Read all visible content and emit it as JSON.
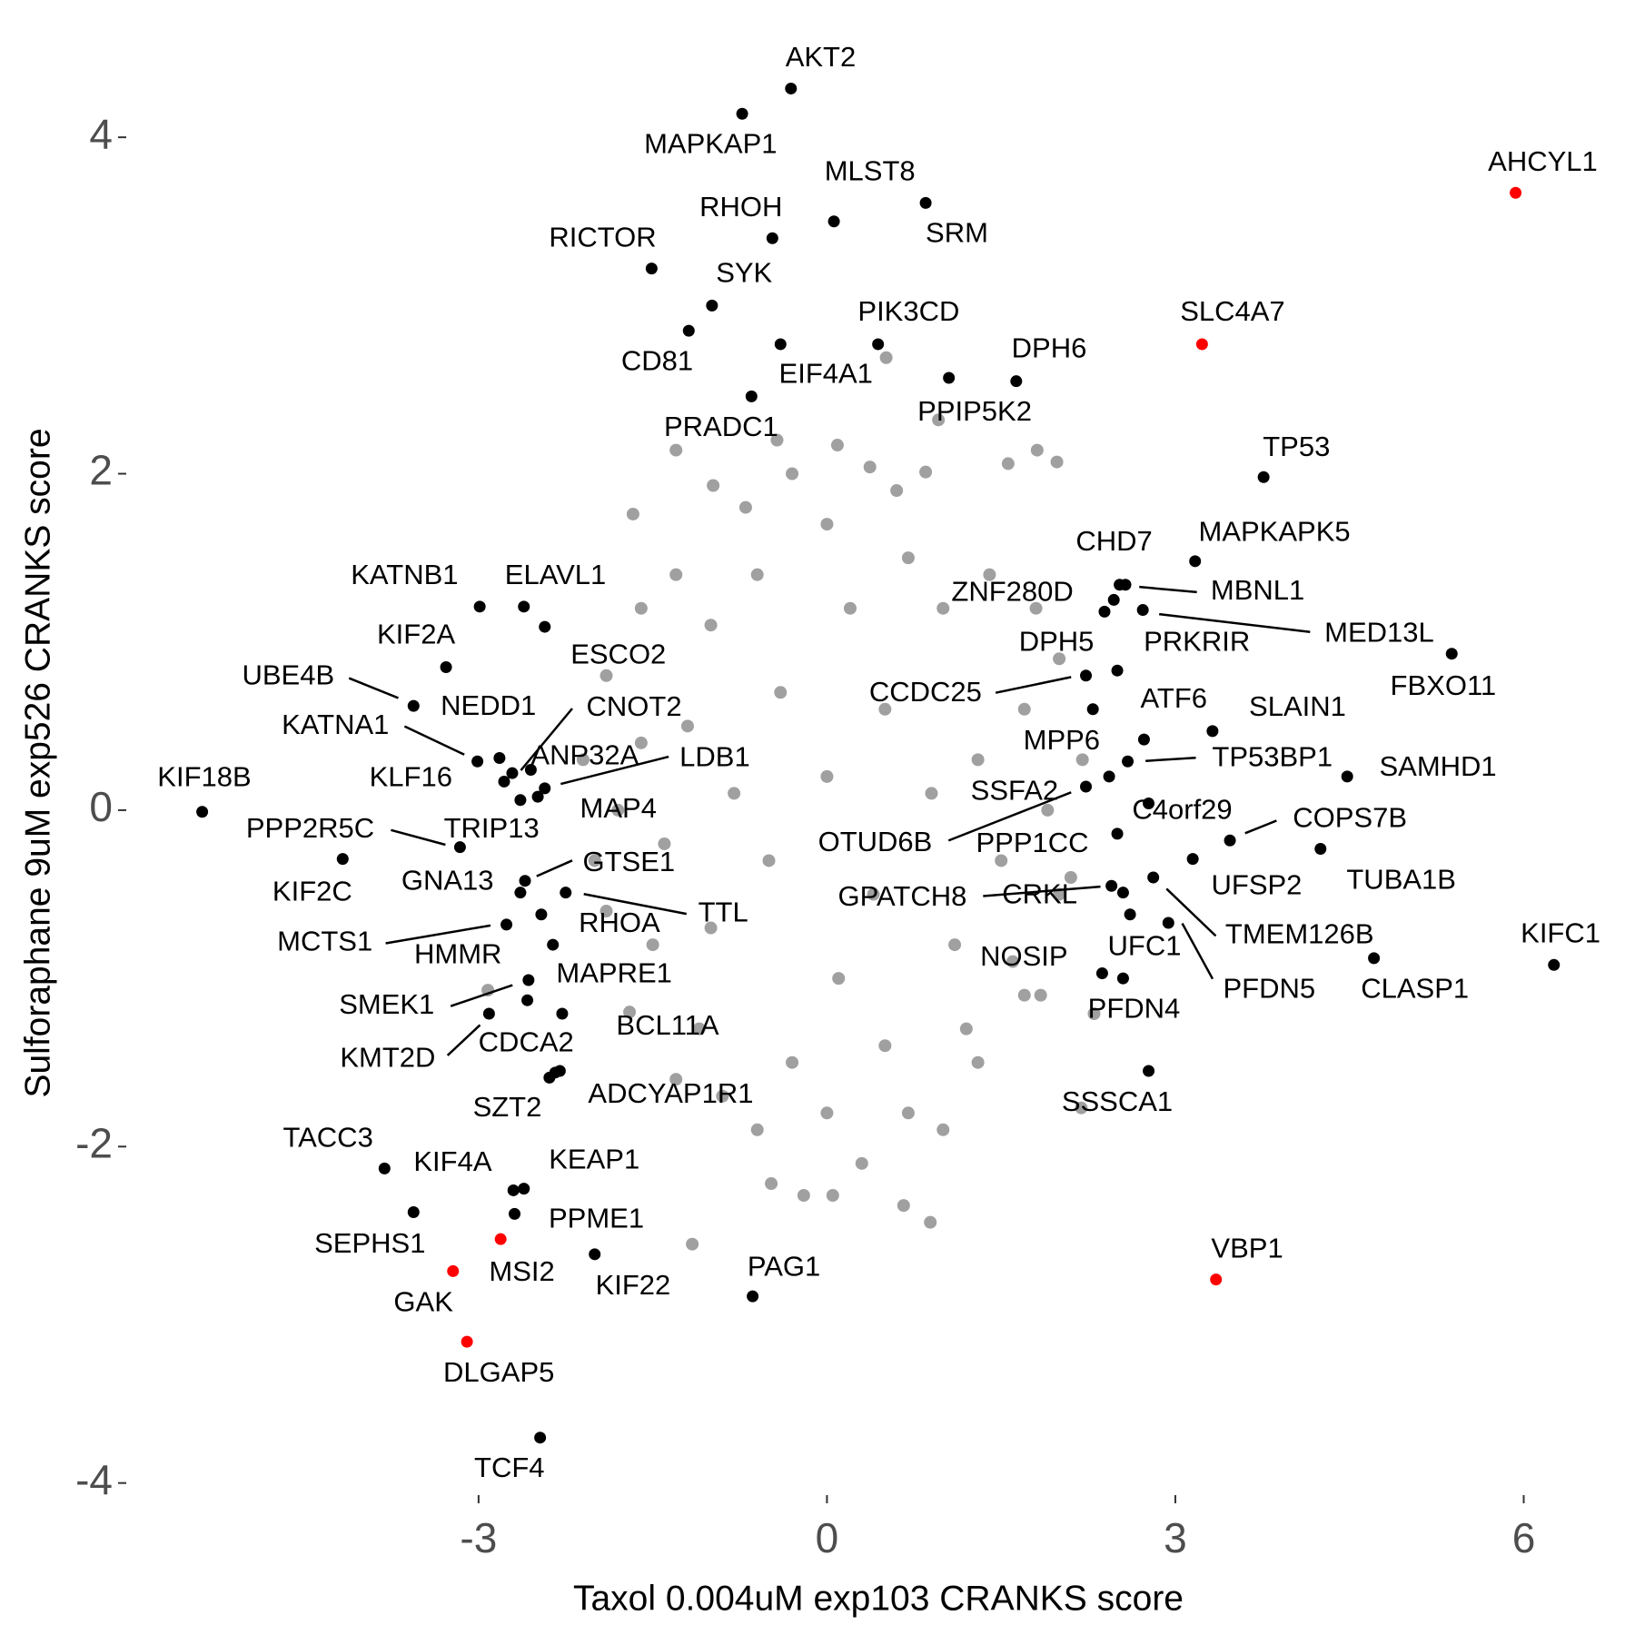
{
  "chart_data": {
    "type": "scatter",
    "x_label": "Taxol 0.004uM exp103 CRANKS score",
    "y_label": "Sulforaphane 9uM exp526 CRANKS score",
    "xlim": [
      -5.9,
      6.7
    ],
    "ylim": [
      -4.2,
      4.6
    ],
    "xticks": [
      -3,
      0,
      3,
      6
    ],
    "yticks": [
      -4,
      -2,
      0,
      2,
      4
    ],
    "grid": false,
    "series": [
      {
        "color": "#a0a0a0",
        "x": [
          0,
          0.5,
          -0.5,
          0.4,
          -0.4,
          0.1,
          0.2,
          -0.8,
          0.9,
          -1.2,
          1.3,
          -1.0,
          1.1,
          -0.6,
          0.7,
          -0.3,
          0.5,
          -1.4,
          1.5,
          0,
          0,
          -1.0,
          1.0,
          -1.1,
          1.2,
          -1.6,
          1.7,
          -1.5,
          1.6,
          -0.7,
          0.6,
          -0.6,
          0.7,
          -1.8,
          1.9,
          -1.3,
          1.4,
          -1.3,
          1.3,
          -0.3,
          0.3,
          -1.9,
          2.0,
          -1.9,
          2.0,
          -1.6,
          1.8,
          -1.7,
          1.7,
          -0.9,
          1.0,
          -2.1,
          2.2,
          -2.0,
          2.1,
          -1.67,
          -1.3,
          -0.98,
          -0.43,
          0.09,
          0.37,
          0.85,
          1.56,
          1.81,
          1.98,
          0.96,
          0.51,
          0.89,
          0.66,
          -0.2,
          0.05,
          -1.16,
          -0.48,
          -2.92,
          2.19,
          1.84,
          2.3
        ],
        "y": [
          0.2,
          0.6,
          -0.3,
          -0.5,
          0.7,
          -1.0,
          1.2,
          0.1,
          0.1,
          0.5,
          0.3,
          -0.7,
          -0.8,
          1.4,
          1.5,
          -1.5,
          -1.4,
          -0.2,
          -0.3,
          1.7,
          -1.8,
          1.1,
          1.2,
          -1.3,
          -1.3,
          0.4,
          0.6,
          -0.8,
          -0.9,
          1.8,
          1.9,
          -1.9,
          -1.8,
          0,
          0,
          1.4,
          1.4,
          -1.6,
          -1.5,
          2.0,
          -2.1,
          0.8,
          0.9,
          -0.6,
          -0.5,
          1.2,
          1.2,
          -1.2,
          -1.1,
          -1.7,
          -1.9,
          0.3,
          0.3,
          -0.3,
          -0.4,
          1.76,
          2.14,
          1.93,
          2.2,
          2.17,
          2.04,
          2.01,
          2.06,
          2.14,
          2.07,
          2.32,
          2.69,
          -2.45,
          -2.35,
          -2.29,
          -2.29,
          -2.58,
          -2.22,
          -1.07,
          -1.77,
          -1.1,
          -1.21
        ]
      },
      {
        "color": "#000000",
        "labels": [
          "AKT2",
          "MAPKAP1",
          "MLST8",
          "SRM",
          "RHOH",
          "RICTOR",
          "SYK",
          "CD81",
          "PIK3CD",
          "EIF4A1",
          "DPH6",
          "PPIP5K2",
          "PRADC1",
          "TP53",
          "MAPKAPK5",
          "CHD7",
          "MBNL1",
          "ZNF280D",
          "PRKRIR",
          "MED13L",
          "FBXO11",
          "DPH5",
          "CCDC25",
          "ATF6",
          "SLAIN1",
          "MPP6",
          "TP53BP1",
          "SAMHD1",
          "SSFA2",
          "OTUD6B",
          "C4orf29",
          "COPS7B",
          "PPP1CC",
          "UFSP2",
          "TUBA1B",
          "KIF18B",
          "GPATCH8",
          "CRKL",
          "TMEM126B",
          "UFC1",
          "PFDN5",
          "KIFC1",
          "CLASP1",
          "NOSIP",
          "PFDN4",
          "SSSCA1",
          "PAG1",
          "TCF4",
          "KATNB1",
          "ELAVL1",
          "ESCO2",
          "KIF2A",
          "UBE4B",
          "NEDD1",
          "KATNA1",
          "CNOT2",
          "ANP32A",
          "LDB1",
          "KLF16",
          "MAP4",
          "PPP2R5C",
          "TRIP13",
          "KIF2C",
          "GTSE1",
          "GNA13",
          "TTL",
          "RHOA",
          "MCTS1",
          "HMMR",
          "MAPRE1",
          "SMEK1",
          "KMT2D",
          "CDCA2",
          "BCL11A",
          "SZT2",
          "ADCYAP1R1",
          "TACC3",
          "KIF4A",
          "KEAP1",
          "PPME1",
          "SEPHS1",
          "KIF22"
        ],
        "x": [
          -0.31,
          -0.73,
          0.06,
          0.85,
          -0.47,
          -1.51,
          -0.99,
          -1.19,
          0.44,
          -0.4,
          1.63,
          1.05,
          -0.65,
          3.76,
          3.17,
          2.52,
          2.57,
          2.47,
          2.39,
          2.72,
          5.38,
          2.5,
          2.23,
          2.73,
          3.32,
          2.29,
          2.59,
          4.48,
          2.43,
          2.23,
          2.77,
          3.47,
          2.5,
          3.15,
          4.25,
          -5.38,
          2.45,
          2.55,
          2.81,
          2.61,
          2.94,
          6.26,
          4.71,
          2.37,
          2.55,
          2.77,
          -0.64,
          -2.47,
          -2.99,
          -2.61,
          -2.43,
          -3.28,
          -3.56,
          -2.82,
          -3.01,
          -2.71,
          -2.55,
          -2.43,
          -2.78,
          -2.49,
          -3.16,
          -2.64,
          -4.17,
          -2.6,
          -2.64,
          -2.25,
          -2.46,
          -2.76,
          -2.36,
          -2.57,
          -2.58,
          -2.91,
          -2.28,
          -2.34,
          -2.39,
          -2.3,
          -3.81,
          -2.7,
          -2.61,
          -2.69,
          -3.56,
          -2.0
        ],
        "y": [
          4.29,
          4.14,
          3.5,
          3.61,
          3.4,
          3.22,
          3.0,
          2.85,
          2.77,
          2.77,
          2.55,
          2.57,
          2.46,
          1.98,
          1.48,
          1.34,
          1.34,
          1.25,
          1.18,
          1.19,
          0.93,
          0.83,
          0.8,
          0.42,
          0.47,
          0.6,
          0.29,
          0.2,
          0.2,
          0.14,
          0.04,
          -0.18,
          -0.14,
          -0.29,
          -0.23,
          -0.01,
          -0.45,
          -0.49,
          -0.4,
          -0.62,
          -0.67,
          -0.92,
          -0.88,
          -0.97,
          -1.0,
          -1.55,
          -2.89,
          -3.73,
          1.21,
          1.21,
          1.09,
          0.85,
          0.62,
          0.31,
          0.29,
          0.22,
          0.24,
          0.13,
          0.17,
          0.08,
          -0.22,
          0.06,
          -0.29,
          -0.42,
          -0.49,
          -0.49,
          -0.62,
          -0.68,
          -0.8,
          -1.01,
          -1.13,
          -1.21,
          -1.21,
          -1.56,
          -1.59,
          -1.55,
          -2.13,
          -2.26,
          -2.25,
          -2.4,
          -2.39,
          -2.64
        ]
      },
      {
        "color": "#ff0000",
        "labels": [
          "AHCYL1",
          "SLC4A7",
          "VBP1",
          "MSI2",
          "GAK",
          "DLGAP5"
        ],
        "x": [
          5.93,
          3.23,
          3.35,
          -2.81,
          -3.22,
          -3.1
        ],
        "y": [
          3.67,
          2.77,
          -2.79,
          -2.55,
          -2.74,
          -3.16
        ]
      }
    ]
  }
}
